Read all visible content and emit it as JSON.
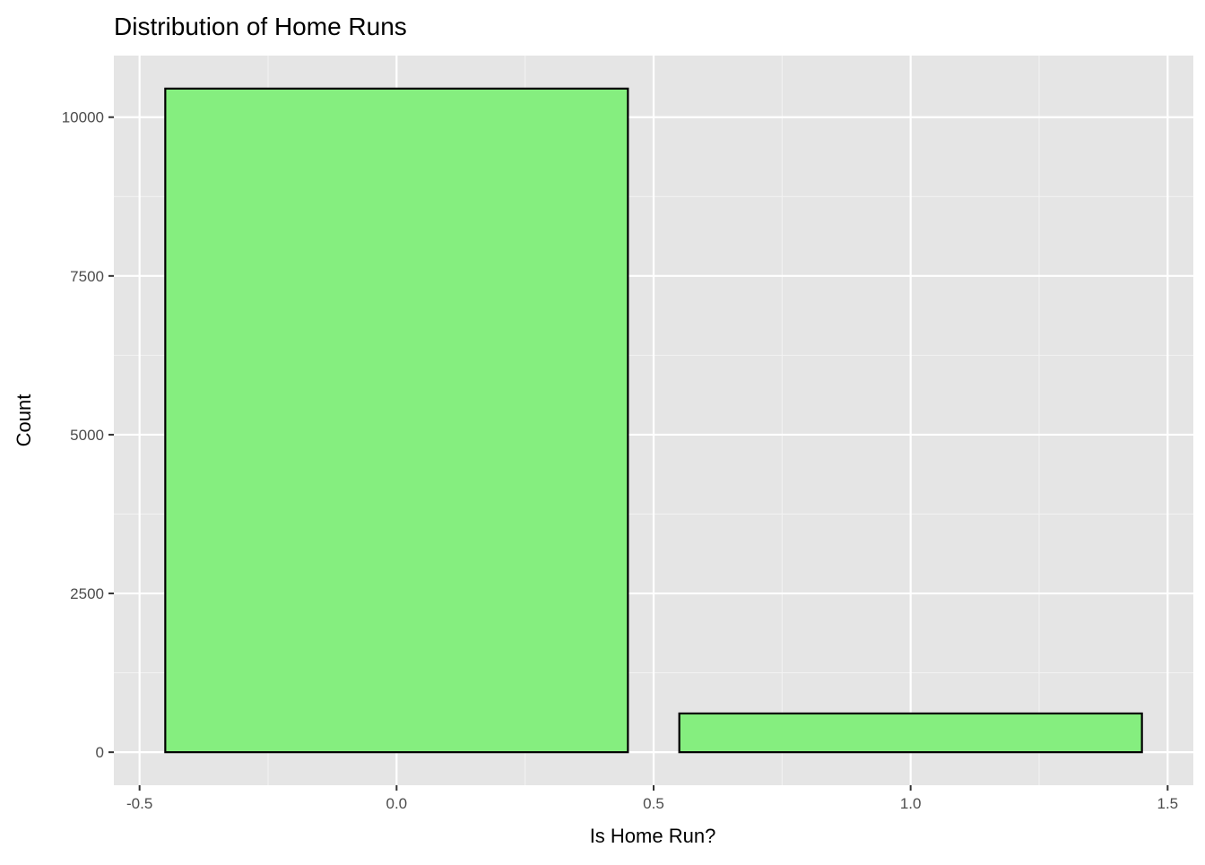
{
  "chart_data": {
    "type": "bar",
    "title": "Distribution of Home Runs",
    "xlabel": "Is Home Run?",
    "ylabel": "Count",
    "x": [
      0,
      1
    ],
    "values": [
      10450,
      610
    ],
    "bar_width": 0.9,
    "xlim": [
      -0.55,
      1.55
    ],
    "ylim": [
      -520,
      10970
    ],
    "x_ticks": [
      -0.5,
      0.0,
      0.5,
      1.0,
      1.5
    ],
    "x_tick_labels": [
      "-0.5",
      "0.0",
      "0.5",
      "1.0",
      "1.5"
    ],
    "y_ticks": [
      0,
      2500,
      5000,
      7500,
      10000
    ],
    "y_tick_labels": [
      "0",
      "2500",
      "5000",
      "7500",
      "10000"
    ],
    "grid": true,
    "legend": "none",
    "colors": {
      "bar_fill": "#85EE7F",
      "bar_stroke": "#000000",
      "panel_background": "#E5E5E5",
      "grid_major": "#FFFFFF",
      "grid_minor": "#F2F2F2",
      "tick_mark": "#333333"
    }
  }
}
